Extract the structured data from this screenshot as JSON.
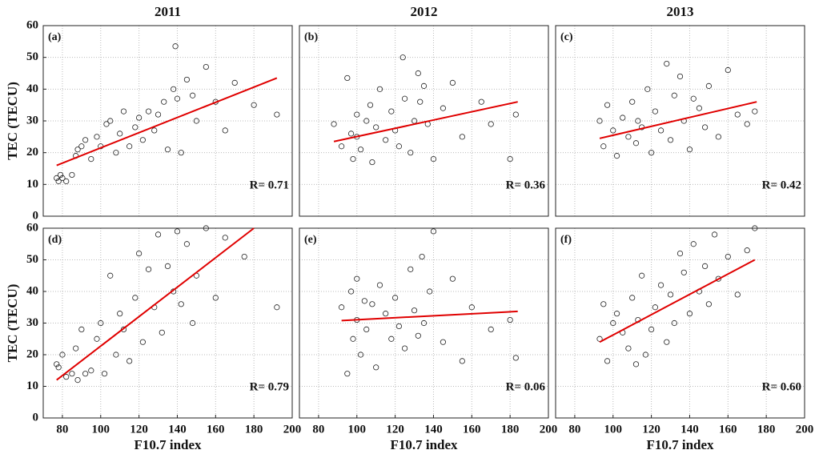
{
  "chart_data": [
    {
      "type": "scatter",
      "title": "2011",
      "panel_label": "(a)",
      "annotation": "R= 0.71",
      "ylabel": "TEC (TECU)",
      "xlim": [
        70,
        200
      ],
      "ylim": [
        0,
        60
      ],
      "yticks": [
        0,
        10,
        20,
        30,
        40,
        50,
        60
      ],
      "points": {
        "color": "#222222",
        "x": [
          77,
          78,
          79,
          80,
          82,
          85,
          87,
          88,
          90,
          92,
          95,
          98,
          100,
          103,
          105,
          108,
          110,
          112,
          115,
          118,
          120,
          122,
          125,
          128,
          130,
          133,
          135,
          138,
          140,
          142,
          145,
          148,
          150,
          155,
          160,
          165,
          170,
          180,
          192,
          139
        ],
        "y": [
          12,
          11,
          13,
          12,
          11,
          13,
          19,
          21,
          22,
          24,
          18,
          25,
          22,
          29,
          30,
          20,
          26,
          33,
          22,
          28,
          31,
          24,
          33,
          27,
          32,
          36,
          21,
          40,
          37,
          20,
          43,
          38,
          30,
          47,
          36,
          27,
          42,
          35,
          32,
          53.5
        ]
      },
      "fit_line": {
        "color": "#e00000",
        "x": [
          77,
          192
        ],
        "y": [
          16,
          43.5
        ]
      }
    },
    {
      "type": "scatter",
      "title": "2012",
      "panel_label": "(b)",
      "annotation": "R= 0.36",
      "xlim": [
        70,
        200
      ],
      "ylim": [
        0,
        60
      ],
      "points": {
        "color": "#222222",
        "x": [
          88,
          92,
          95,
          97,
          98,
          100,
          100,
          102,
          105,
          107,
          108,
          110,
          112,
          115,
          118,
          120,
          122,
          124,
          125,
          128,
          130,
          132,
          133,
          135,
          137,
          140,
          145,
          150,
          155,
          165,
          170,
          180,
          183
        ],
        "y": [
          29,
          22,
          43.5,
          26,
          18,
          25,
          32,
          21,
          30,
          35,
          17,
          28,
          40,
          24,
          33,
          27,
          22,
          50,
          37,
          20,
          30,
          45,
          36,
          41,
          29,
          18,
          34,
          42,
          25,
          36,
          29,
          18,
          32
        ]
      },
      "fit_line": {
        "color": "#e00000",
        "x": [
          88,
          184
        ],
        "y": [
          23.5,
          36
        ]
      }
    },
    {
      "type": "scatter",
      "title": "2013",
      "panel_label": "(c)",
      "annotation": "R= 0.42",
      "xlim": [
        70,
        200
      ],
      "ylim": [
        0,
        60
      ],
      "points": {
        "color": "#222222",
        "x": [
          93,
          95,
          97,
          100,
          102,
          105,
          108,
          110,
          112,
          113,
          115,
          118,
          120,
          122,
          125,
          128,
          130,
          132,
          135,
          137,
          140,
          142,
          145,
          148,
          150,
          155,
          160,
          165,
          170,
          174
        ],
        "y": [
          30,
          22,
          35,
          27,
          19,
          31,
          25,
          36,
          23,
          30,
          28,
          40,
          20,
          33,
          27,
          48,
          24,
          38,
          44,
          30,
          21,
          37,
          34,
          28,
          41,
          25,
          46,
          32,
          29,
          33
        ]
      },
      "fit_line": {
        "color": "#e00000",
        "x": [
          93,
          175
        ],
        "y": [
          24.5,
          36
        ]
      }
    },
    {
      "type": "scatter",
      "panel_label": "(d)",
      "annotation": "R= 0.79",
      "ylabel": "TEC (TECU)",
      "xlabel": "F10.7 index",
      "xlim": [
        70,
        200
      ],
      "ylim": [
        0,
        60
      ],
      "xticks": [
        80,
        100,
        120,
        140,
        160,
        180,
        200
      ],
      "yticks": [
        0,
        10,
        20,
        30,
        40,
        50,
        60
      ],
      "points": {
        "color": "#222222",
        "x": [
          77,
          78,
          80,
          82,
          85,
          87,
          88,
          90,
          92,
          95,
          98,
          100,
          102,
          105,
          108,
          110,
          112,
          115,
          118,
          120,
          122,
          125,
          128,
          130,
          132,
          135,
          138,
          140,
          142,
          145,
          148,
          150,
          155,
          160,
          165,
          175,
          192
        ],
        "y": [
          17,
          16,
          20,
          13,
          14,
          22,
          12,
          28,
          14,
          15,
          25,
          30,
          14,
          45,
          20,
          33,
          28,
          18,
          38,
          52,
          24,
          47,
          35,
          58,
          27,
          48,
          40,
          59,
          36,
          55,
          30,
          45,
          60,
          38,
          57,
          51,
          35
        ]
      },
      "fit_line": {
        "color": "#e00000",
        "x": [
          77,
          180
        ],
        "y": [
          12,
          60
        ]
      }
    },
    {
      "type": "scatter",
      "panel_label": "(e)",
      "annotation": "R= 0.06",
      "xlabel": "F10.7 index",
      "xlim": [
        70,
        200
      ],
      "ylim": [
        0,
        60
      ],
      "xticks": [
        80,
        100,
        120,
        140,
        160,
        180,
        200
      ],
      "points": {
        "color": "#222222",
        "x": [
          92,
          95,
          97,
          98,
          100,
          100,
          102,
          104,
          105,
          108,
          110,
          112,
          115,
          118,
          120,
          122,
          125,
          128,
          130,
          132,
          134,
          135,
          138,
          140,
          145,
          150,
          155,
          160,
          170,
          180,
          183
        ],
        "y": [
          35,
          14,
          40,
          25,
          44,
          31,
          20,
          37,
          28,
          36,
          16,
          42,
          33,
          25,
          38,
          29,
          22,
          47,
          34,
          26,
          51,
          30,
          40,
          59,
          24,
          44,
          18,
          35,
          28,
          31,
          19
        ]
      },
      "fit_line": {
        "color": "#e00000",
        "x": [
          92,
          184
        ],
        "y": [
          30.8,
          33.7
        ]
      }
    },
    {
      "type": "scatter",
      "panel_label": "(f)",
      "annotation": "R= 0.60",
      "xlabel": "F10.7 index",
      "xlim": [
        70,
        200
      ],
      "ylim": [
        0,
        60
      ],
      "xticks": [
        80,
        100,
        120,
        140,
        160,
        180,
        200
      ],
      "points": {
        "color": "#222222",
        "x": [
          93,
          95,
          97,
          100,
          102,
          105,
          108,
          110,
          112,
          113,
          115,
          117,
          120,
          122,
          125,
          128,
          130,
          132,
          135,
          137,
          140,
          142,
          145,
          148,
          150,
          153,
          155,
          160,
          165,
          170,
          174
        ],
        "y": [
          25,
          36,
          18,
          30,
          33,
          27,
          22,
          38,
          17,
          31,
          45,
          20,
          28,
          35,
          42,
          24,
          39,
          30,
          52,
          46,
          33,
          55,
          40,
          48,
          36,
          58,
          44,
          51,
          39,
          53,
          60
        ]
      },
      "fit_line": {
        "color": "#e00000",
        "x": [
          93,
          174
        ],
        "y": [
          24,
          50
        ]
      }
    }
  ]
}
